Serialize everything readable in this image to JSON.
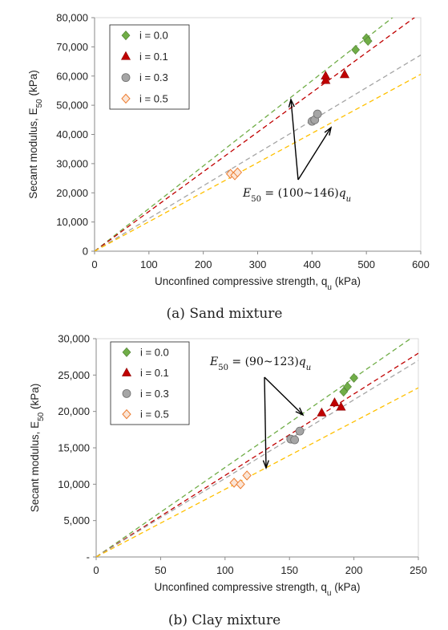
{
  "chart_data": [
    {
      "type": "scatter",
      "caption": "(a) Sand mixture",
      "xlabel": "Unconfined compressive strength, q",
      "xlabel_sub": "u",
      "xlabel_unit": " (kPa)",
      "ylabel": "Secant modulus, E",
      "ylabel_sub": "50",
      "ylabel_unit": " (kPa)",
      "xlim": [
        0,
        600
      ],
      "ylim": [
        0,
        80000
      ],
      "xticks": [
        0,
        100,
        200,
        300,
        400,
        500,
        600
      ],
      "yticks": [
        0,
        10000,
        20000,
        30000,
        40000,
        50000,
        60000,
        70000,
        80000
      ],
      "xtick_labels": [
        "0",
        "100",
        "200",
        "300",
        "400",
        "500",
        "600"
      ],
      "ytick_labels": [
        "0",
        "10,000",
        "20,000",
        "30,000",
        "40,000",
        "50,000",
        "60,000",
        "70,000",
        "80,000"
      ],
      "legend": "top-left",
      "series": [
        {
          "name": "i = 0.0",
          "marker": "diamond",
          "color": "#70AD47",
          "x": [
            480,
            500,
            503
          ],
          "y": [
            69000,
            73000,
            72000
          ],
          "line_slope": 146
        },
        {
          "name": "i = 0.1",
          "marker": "triangle",
          "color": "#C00000",
          "x": [
            425,
            425,
            460
          ],
          "y": [
            58500,
            60000,
            60500
          ],
          "line_slope": 136
        },
        {
          "name": "i = 0.3",
          "marker": "circle",
          "color": "#A5A5A5",
          "x": [
            400,
            405,
            410
          ],
          "y": [
            44500,
            45000,
            47000
          ],
          "line_slope": 112
        },
        {
          "name": "i = 0.5",
          "marker": "diamond-open",
          "color": "#ED7D31",
          "x": [
            250,
            258,
            263
          ],
          "y": [
            26500,
            26000,
            27000
          ],
          "line_slope": 101
        }
      ],
      "line_colors": [
        "#70AD47",
        "#C00000",
        "#A5A5A5",
        "#FFC000"
      ],
      "annotation": {
        "eq_lhs": "E",
        "eq_lhs_sub": "50",
        "eq_mid": " = (100~146)",
        "eq_rhs": "q",
        "eq_rhs_sub": "u"
      }
    },
    {
      "type": "scatter",
      "caption": "(b) Clay mixture",
      "xlabel": "Unconfined compressive strength, q",
      "xlabel_sub": "u",
      "xlabel_unit": " (kPa)",
      "ylabel": "Secant modulus, E",
      "ylabel_sub": "50",
      "ylabel_unit": " (kPa)",
      "xlim": [
        0,
        250
      ],
      "ylim": [
        0,
        30000
      ],
      "xticks": [
        0,
        50,
        100,
        150,
        200,
        250
      ],
      "yticks": [
        0,
        5000,
        10000,
        15000,
        20000,
        25000,
        30000
      ],
      "xtick_labels": [
        "0",
        "50",
        "100",
        "150",
        "200",
        "250"
      ],
      "ytick_labels": [
        "-",
        "5,000",
        "10,000",
        "15,000",
        "20,000",
        "25,000",
        "30,000"
      ],
      "legend": "top-left",
      "series": [
        {
          "name": "i = 0.0",
          "marker": "diamond",
          "color": "#70AD47",
          "x": [
            192,
            195,
            200
          ],
          "y": [
            22700,
            23400,
            24600
          ],
          "line_slope": 123
        },
        {
          "name": "i = 0.1",
          "marker": "triangle",
          "color": "#C00000",
          "x": [
            175,
            185,
            190
          ],
          "y": [
            19800,
            21200,
            20600
          ],
          "line_slope": 112
        },
        {
          "name": "i = 0.3",
          "marker": "circle",
          "color": "#A5A5A5",
          "x": [
            151,
            154,
            158
          ],
          "y": [
            16200,
            16100,
            17300
          ],
          "line_slope": 108
        },
        {
          "name": "i = 0.5",
          "marker": "diamond-open",
          "color": "#ED7D31",
          "x": [
            107,
            112,
            117
          ],
          "y": [
            10200,
            10000,
            11200
          ],
          "line_slope": 93
        }
      ],
      "line_colors": [
        "#70AD47",
        "#C00000",
        "#A5A5A5",
        "#FFC000"
      ],
      "annotation": {
        "eq_lhs": "E",
        "eq_lhs_sub": "50",
        "eq_mid": " = (90~123)",
        "eq_rhs": "q",
        "eq_rhs_sub": "u"
      }
    }
  ]
}
